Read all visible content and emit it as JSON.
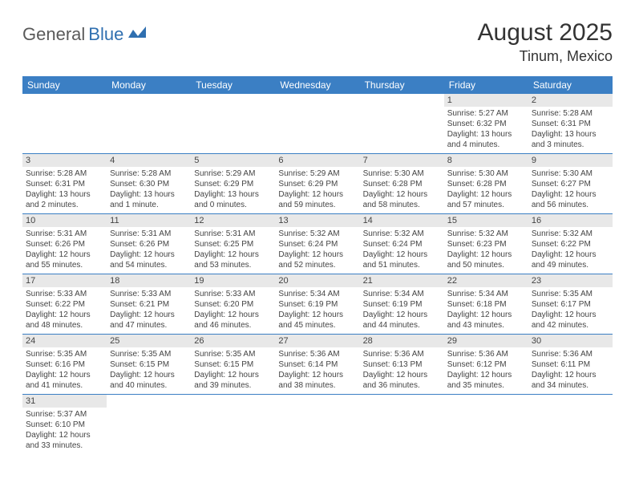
{
  "logo": {
    "part1": "General",
    "part2": "Blue"
  },
  "title": "August 2025",
  "location": "Tinum, Mexico",
  "colors": {
    "header_bg": "#3b7fc4",
    "header_fg": "#ffffff",
    "daynum_bg": "#e8e8e8",
    "text": "#444444",
    "logo_gray": "#5a5a5a",
    "logo_blue": "#2f6fb0",
    "rule": "#3b7fc4"
  },
  "weekdays": [
    "Sunday",
    "Monday",
    "Tuesday",
    "Wednesday",
    "Thursday",
    "Friday",
    "Saturday"
  ],
  "grid": [
    [
      {
        "n": "",
        "sr": "",
        "ss": "",
        "dl1": "",
        "dl2": ""
      },
      {
        "n": "",
        "sr": "",
        "ss": "",
        "dl1": "",
        "dl2": ""
      },
      {
        "n": "",
        "sr": "",
        "ss": "",
        "dl1": "",
        "dl2": ""
      },
      {
        "n": "",
        "sr": "",
        "ss": "",
        "dl1": "",
        "dl2": ""
      },
      {
        "n": "",
        "sr": "",
        "ss": "",
        "dl1": "",
        "dl2": ""
      },
      {
        "n": "1",
        "sr": "Sunrise: 5:27 AM",
        "ss": "Sunset: 6:32 PM",
        "dl1": "Daylight: 13 hours",
        "dl2": "and 4 minutes."
      },
      {
        "n": "2",
        "sr": "Sunrise: 5:28 AM",
        "ss": "Sunset: 6:31 PM",
        "dl1": "Daylight: 13 hours",
        "dl2": "and 3 minutes."
      }
    ],
    [
      {
        "n": "3",
        "sr": "Sunrise: 5:28 AM",
        "ss": "Sunset: 6:31 PM",
        "dl1": "Daylight: 13 hours",
        "dl2": "and 2 minutes."
      },
      {
        "n": "4",
        "sr": "Sunrise: 5:28 AM",
        "ss": "Sunset: 6:30 PM",
        "dl1": "Daylight: 13 hours",
        "dl2": "and 1 minute."
      },
      {
        "n": "5",
        "sr": "Sunrise: 5:29 AM",
        "ss": "Sunset: 6:29 PM",
        "dl1": "Daylight: 13 hours",
        "dl2": "and 0 minutes."
      },
      {
        "n": "6",
        "sr": "Sunrise: 5:29 AM",
        "ss": "Sunset: 6:29 PM",
        "dl1": "Daylight: 12 hours",
        "dl2": "and 59 minutes."
      },
      {
        "n": "7",
        "sr": "Sunrise: 5:30 AM",
        "ss": "Sunset: 6:28 PM",
        "dl1": "Daylight: 12 hours",
        "dl2": "and 58 minutes."
      },
      {
        "n": "8",
        "sr": "Sunrise: 5:30 AM",
        "ss": "Sunset: 6:28 PM",
        "dl1": "Daylight: 12 hours",
        "dl2": "and 57 minutes."
      },
      {
        "n": "9",
        "sr": "Sunrise: 5:30 AM",
        "ss": "Sunset: 6:27 PM",
        "dl1": "Daylight: 12 hours",
        "dl2": "and 56 minutes."
      }
    ],
    [
      {
        "n": "10",
        "sr": "Sunrise: 5:31 AM",
        "ss": "Sunset: 6:26 PM",
        "dl1": "Daylight: 12 hours",
        "dl2": "and 55 minutes."
      },
      {
        "n": "11",
        "sr": "Sunrise: 5:31 AM",
        "ss": "Sunset: 6:26 PM",
        "dl1": "Daylight: 12 hours",
        "dl2": "and 54 minutes."
      },
      {
        "n": "12",
        "sr": "Sunrise: 5:31 AM",
        "ss": "Sunset: 6:25 PM",
        "dl1": "Daylight: 12 hours",
        "dl2": "and 53 minutes."
      },
      {
        "n": "13",
        "sr": "Sunrise: 5:32 AM",
        "ss": "Sunset: 6:24 PM",
        "dl1": "Daylight: 12 hours",
        "dl2": "and 52 minutes."
      },
      {
        "n": "14",
        "sr": "Sunrise: 5:32 AM",
        "ss": "Sunset: 6:24 PM",
        "dl1": "Daylight: 12 hours",
        "dl2": "and 51 minutes."
      },
      {
        "n": "15",
        "sr": "Sunrise: 5:32 AM",
        "ss": "Sunset: 6:23 PM",
        "dl1": "Daylight: 12 hours",
        "dl2": "and 50 minutes."
      },
      {
        "n": "16",
        "sr": "Sunrise: 5:32 AM",
        "ss": "Sunset: 6:22 PM",
        "dl1": "Daylight: 12 hours",
        "dl2": "and 49 minutes."
      }
    ],
    [
      {
        "n": "17",
        "sr": "Sunrise: 5:33 AM",
        "ss": "Sunset: 6:22 PM",
        "dl1": "Daylight: 12 hours",
        "dl2": "and 48 minutes."
      },
      {
        "n": "18",
        "sr": "Sunrise: 5:33 AM",
        "ss": "Sunset: 6:21 PM",
        "dl1": "Daylight: 12 hours",
        "dl2": "and 47 minutes."
      },
      {
        "n": "19",
        "sr": "Sunrise: 5:33 AM",
        "ss": "Sunset: 6:20 PM",
        "dl1": "Daylight: 12 hours",
        "dl2": "and 46 minutes."
      },
      {
        "n": "20",
        "sr": "Sunrise: 5:34 AM",
        "ss": "Sunset: 6:19 PM",
        "dl1": "Daylight: 12 hours",
        "dl2": "and 45 minutes."
      },
      {
        "n": "21",
        "sr": "Sunrise: 5:34 AM",
        "ss": "Sunset: 6:19 PM",
        "dl1": "Daylight: 12 hours",
        "dl2": "and 44 minutes."
      },
      {
        "n": "22",
        "sr": "Sunrise: 5:34 AM",
        "ss": "Sunset: 6:18 PM",
        "dl1": "Daylight: 12 hours",
        "dl2": "and 43 minutes."
      },
      {
        "n": "23",
        "sr": "Sunrise: 5:35 AM",
        "ss": "Sunset: 6:17 PM",
        "dl1": "Daylight: 12 hours",
        "dl2": "and 42 minutes."
      }
    ],
    [
      {
        "n": "24",
        "sr": "Sunrise: 5:35 AM",
        "ss": "Sunset: 6:16 PM",
        "dl1": "Daylight: 12 hours",
        "dl2": "and 41 minutes."
      },
      {
        "n": "25",
        "sr": "Sunrise: 5:35 AM",
        "ss": "Sunset: 6:15 PM",
        "dl1": "Daylight: 12 hours",
        "dl2": "and 40 minutes."
      },
      {
        "n": "26",
        "sr": "Sunrise: 5:35 AM",
        "ss": "Sunset: 6:15 PM",
        "dl1": "Daylight: 12 hours",
        "dl2": "and 39 minutes."
      },
      {
        "n": "27",
        "sr": "Sunrise: 5:36 AM",
        "ss": "Sunset: 6:14 PM",
        "dl1": "Daylight: 12 hours",
        "dl2": "and 38 minutes."
      },
      {
        "n": "28",
        "sr": "Sunrise: 5:36 AM",
        "ss": "Sunset: 6:13 PM",
        "dl1": "Daylight: 12 hours",
        "dl2": "and 36 minutes."
      },
      {
        "n": "29",
        "sr": "Sunrise: 5:36 AM",
        "ss": "Sunset: 6:12 PM",
        "dl1": "Daylight: 12 hours",
        "dl2": "and 35 minutes."
      },
      {
        "n": "30",
        "sr": "Sunrise: 5:36 AM",
        "ss": "Sunset: 6:11 PM",
        "dl1": "Daylight: 12 hours",
        "dl2": "and 34 minutes."
      }
    ],
    [
      {
        "n": "31",
        "sr": "Sunrise: 5:37 AM",
        "ss": "Sunset: 6:10 PM",
        "dl1": "Daylight: 12 hours",
        "dl2": "and 33 minutes."
      },
      {
        "n": "",
        "sr": "",
        "ss": "",
        "dl1": "",
        "dl2": ""
      },
      {
        "n": "",
        "sr": "",
        "ss": "",
        "dl1": "",
        "dl2": ""
      },
      {
        "n": "",
        "sr": "",
        "ss": "",
        "dl1": "",
        "dl2": ""
      },
      {
        "n": "",
        "sr": "",
        "ss": "",
        "dl1": "",
        "dl2": ""
      },
      {
        "n": "",
        "sr": "",
        "ss": "",
        "dl1": "",
        "dl2": ""
      },
      {
        "n": "",
        "sr": "",
        "ss": "",
        "dl1": "",
        "dl2": ""
      }
    ]
  ]
}
